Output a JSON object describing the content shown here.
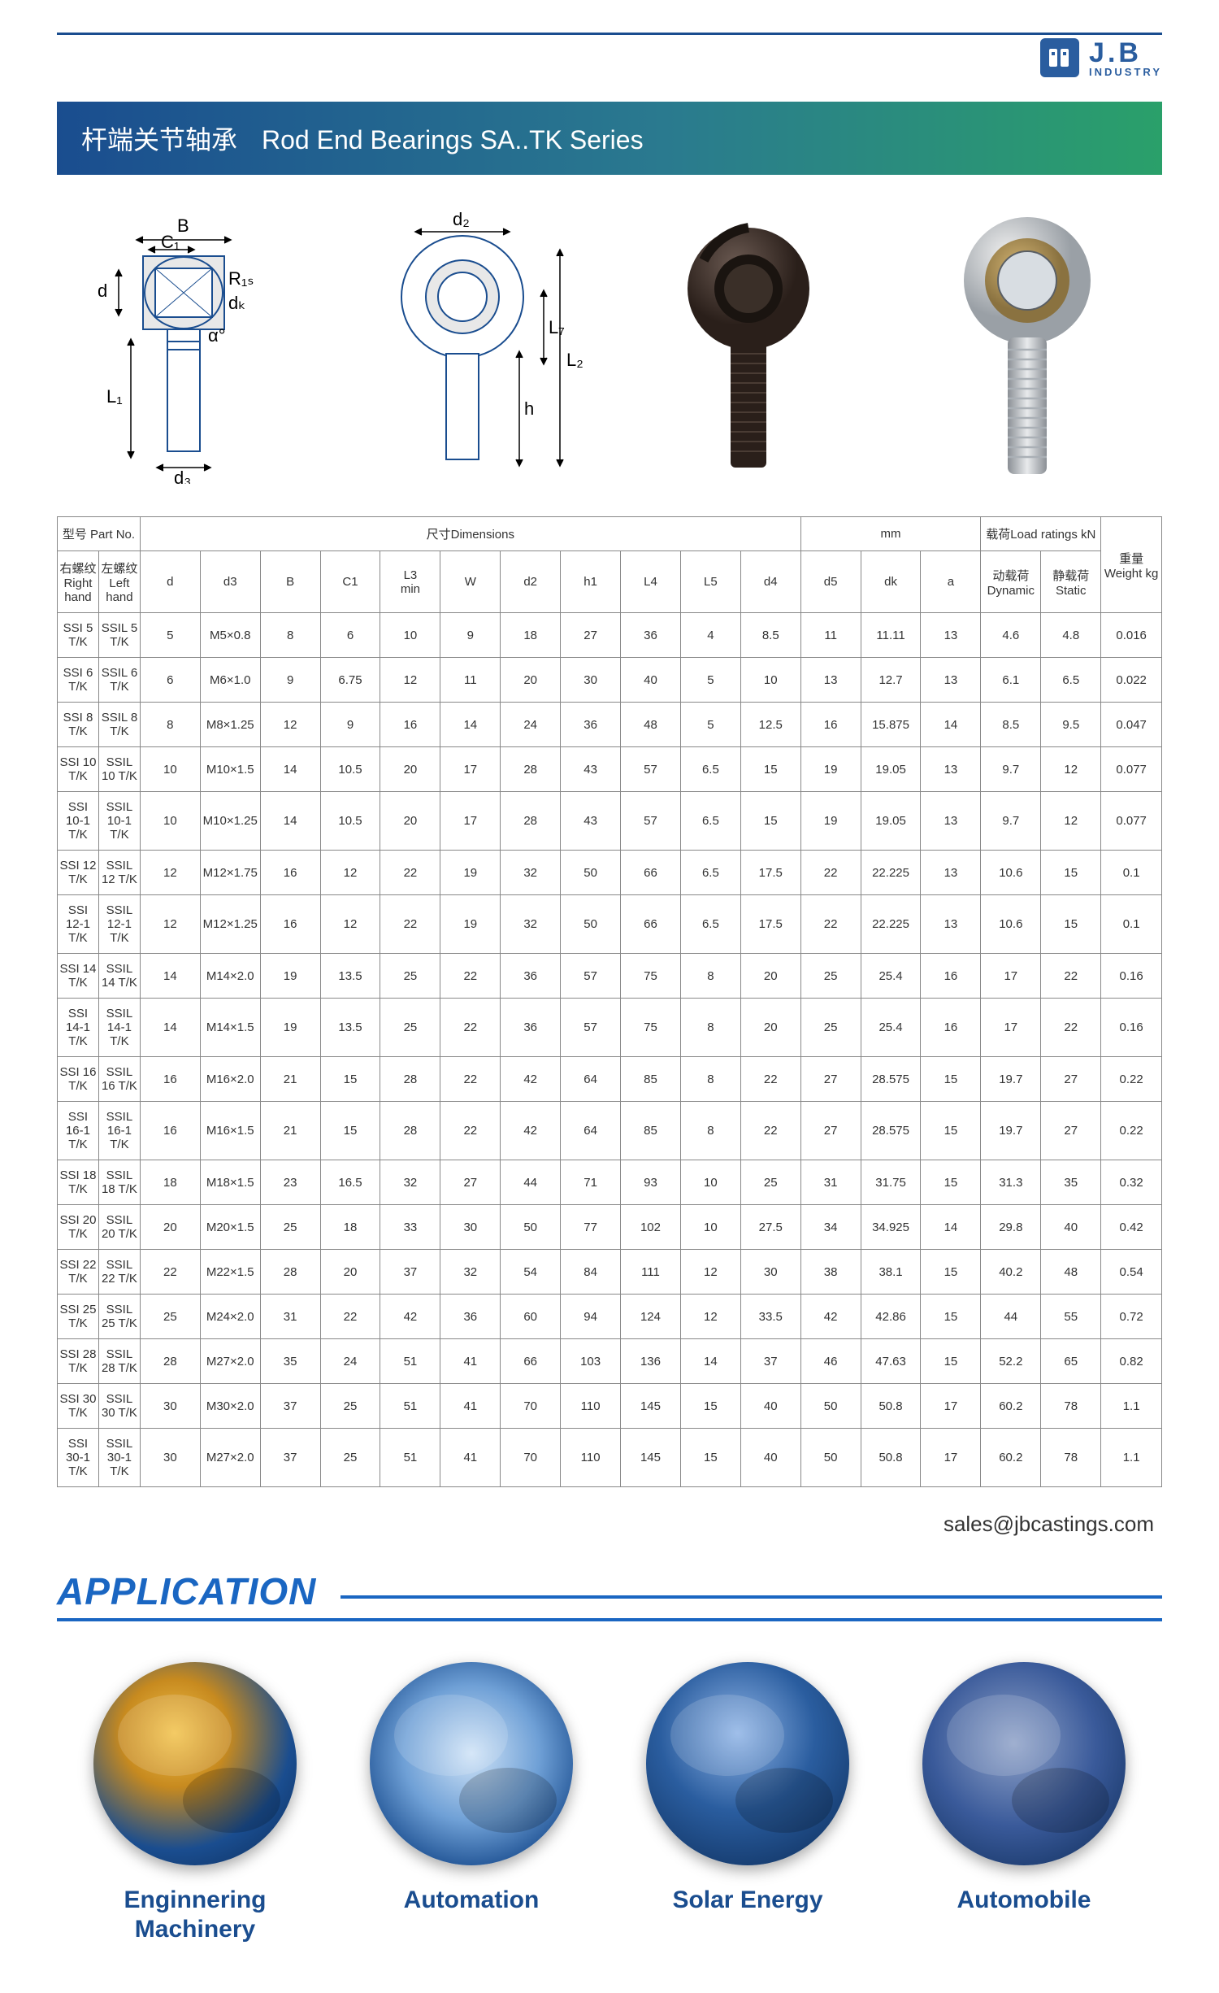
{
  "brand": {
    "name": "J.B",
    "sub": "INDUSTRY",
    "badge": "JB"
  },
  "title": {
    "cn": "杆端关节轴承",
    "en": "Rod End Bearings SA..TK Series"
  },
  "contact_email": "sales@jbcastings.com",
  "diagram_labels": {
    "B": "B",
    "C1": "C₁",
    "d": "d",
    "R1s": "R₁ₛ",
    "dk": "dₖ",
    "alpha": "α°",
    "L1": "L₁",
    "d3": "d₃",
    "d2": "d₂",
    "L7": "L₇",
    "L2": "L₂",
    "h": "h"
  },
  "table": {
    "header_groups": {
      "part_no": "型号 Part No.",
      "dimensions": "尺寸Dimensions",
      "mm": "mm",
      "load": "载荷Load ratings kN",
      "weight": "重量\nWeight kg"
    },
    "columns": [
      "右螺纹\nRight hand",
      "左螺纹\nLeft hand",
      "d",
      "d3",
      "B",
      "C1",
      "L3\nmin",
      "W",
      "d2",
      "h1",
      "L4",
      "L5",
      "d4",
      "d5",
      "dk",
      "a",
      "动载荷\nDynamic",
      "静载荷\nStatic"
    ],
    "rows": [
      [
        "SSI 5 T/K",
        "SSIL 5 T/K",
        "5",
        "M5×0.8",
        "8",
        "6",
        "10",
        "9",
        "18",
        "27",
        "36",
        "4",
        "8.5",
        "11",
        "11.11",
        "13",
        "4.6",
        "4.8",
        "0.016"
      ],
      [
        "SSI 6 T/K",
        "SSIL 6 T/K",
        "6",
        "M6×1.0",
        "9",
        "6.75",
        "12",
        "11",
        "20",
        "30",
        "40",
        "5",
        "10",
        "13",
        "12.7",
        "13",
        "6.1",
        "6.5",
        "0.022"
      ],
      [
        "SSI 8 T/K",
        "SSIL 8 T/K",
        "8",
        "M8×1.25",
        "12",
        "9",
        "16",
        "14",
        "24",
        "36",
        "48",
        "5",
        "12.5",
        "16",
        "15.875",
        "14",
        "8.5",
        "9.5",
        "0.047"
      ],
      [
        "SSI 10 T/K",
        "SSIL 10 T/K",
        "10",
        "M10×1.5",
        "14",
        "10.5",
        "20",
        "17",
        "28",
        "43",
        "57",
        "6.5",
        "15",
        "19",
        "19.05",
        "13",
        "9.7",
        "12",
        "0.077"
      ],
      [
        "SSI 10-1 T/K",
        "SSIL 10-1 T/K",
        "10",
        "M10×1.25",
        "14",
        "10.5",
        "20",
        "17",
        "28",
        "43",
        "57",
        "6.5",
        "15",
        "19",
        "19.05",
        "13",
        "9.7",
        "12",
        "0.077"
      ],
      [
        "SSI 12 T/K",
        "SSIL 12 T/K",
        "12",
        "M12×1.75",
        "16",
        "12",
        "22",
        "19",
        "32",
        "50",
        "66",
        "6.5",
        "17.5",
        "22",
        "22.225",
        "13",
        "10.6",
        "15",
        "0.1"
      ],
      [
        "SSI 12-1 T/K",
        "SSIL 12-1 T/K",
        "12",
        "M12×1.25",
        "16",
        "12",
        "22",
        "19",
        "32",
        "50",
        "66",
        "6.5",
        "17.5",
        "22",
        "22.225",
        "13",
        "10.6",
        "15",
        "0.1"
      ],
      [
        "SSI 14 T/K",
        "SSIL 14 T/K",
        "14",
        "M14×2.0",
        "19",
        "13.5",
        "25",
        "22",
        "36",
        "57",
        "75",
        "8",
        "20",
        "25",
        "25.4",
        "16",
        "17",
        "22",
        "0.16"
      ],
      [
        "SSI 14-1 T/K",
        "SSIL 14-1 T/K",
        "14",
        "M14×1.5",
        "19",
        "13.5",
        "25",
        "22",
        "36",
        "57",
        "75",
        "8",
        "20",
        "25",
        "25.4",
        "16",
        "17",
        "22",
        "0.16"
      ],
      [
        "SSI 16 T/K",
        "SSIL 16 T/K",
        "16",
        "M16×2.0",
        "21",
        "15",
        "28",
        "22",
        "42",
        "64",
        "85",
        "8",
        "22",
        "27",
        "28.575",
        "15",
        "19.7",
        "27",
        "0.22"
      ],
      [
        "SSI 16-1 T/K",
        "SSIL 16-1 T/K",
        "16",
        "M16×1.5",
        "21",
        "15",
        "28",
        "22",
        "42",
        "64",
        "85",
        "8",
        "22",
        "27",
        "28.575",
        "15",
        "19.7",
        "27",
        "0.22"
      ],
      [
        "SSI 18 T/K",
        "SSIL 18 T/K",
        "18",
        "M18×1.5",
        "23",
        "16.5",
        "32",
        "27",
        "44",
        "71",
        "93",
        "10",
        "25",
        "31",
        "31.75",
        "15",
        "31.3",
        "35",
        "0.32"
      ],
      [
        "SSI 20 T/K",
        "SSIL 20 T/K",
        "20",
        "M20×1.5",
        "25",
        "18",
        "33",
        "30",
        "50",
        "77",
        "102",
        "10",
        "27.5",
        "34",
        "34.925",
        "14",
        "29.8",
        "40",
        "0.42"
      ],
      [
        "SSI 22 T/K",
        "SSIL 22 T/K",
        "22",
        "M22×1.5",
        "28",
        "20",
        "37",
        "32",
        "54",
        "84",
        "111",
        "12",
        "30",
        "38",
        "38.1",
        "15",
        "40.2",
        "48",
        "0.54"
      ],
      [
        "SSI 25 T/K",
        "SSIL 25 T/K",
        "25",
        "M24×2.0",
        "31",
        "22",
        "42",
        "36",
        "60",
        "94",
        "124",
        "12",
        "33.5",
        "42",
        "42.86",
        "15",
        "44",
        "55",
        "0.72"
      ],
      [
        "SSI 28 T/K",
        "SSIL 28 T/K",
        "28",
        "M27×2.0",
        "35",
        "24",
        "51",
        "41",
        "66",
        "103",
        "136",
        "14",
        "37",
        "46",
        "47.63",
        "15",
        "52.2",
        "65",
        "0.82"
      ],
      [
        "SSI 30 T/K",
        "SSIL 30 T/K",
        "30",
        "M30×2.0",
        "37",
        "25",
        "51",
        "41",
        "70",
        "110",
        "145",
        "15",
        "40",
        "50",
        "50.8",
        "17",
        "60.2",
        "78",
        "1.1"
      ],
      [
        "SSI 30-1 T/K",
        "SSIL 30-1 T/K",
        "30",
        "M27×2.0",
        "37",
        "25",
        "51",
        "41",
        "70",
        "110",
        "145",
        "15",
        "40",
        "50",
        "50.8",
        "17",
        "60.2",
        "78",
        "1.1"
      ]
    ]
  },
  "applications_heading": "APPLICATION",
  "applications": [
    {
      "label": "Enginnering\nMachinery",
      "bg": "radial-gradient(circle at 40% 35%, #f2c24a 0%, #c78a1f 30%, #1a4d8f 65%, #0b2a55 100%)"
    },
    {
      "label": "Automation",
      "bg": "radial-gradient(circle at 50% 45%, #cfe3f7 0%, #6fa0d6 45%, #1a4d8f 80%, #0b2a55 100%)"
    },
    {
      "label": "Solar Energy",
      "bg": "radial-gradient(circle at 45% 35%, #8fb4e6 0%, #2a5d9f 45%, #0b2a55 100%)"
    },
    {
      "label": "Automobile",
      "bg": "radial-gradient(circle at 45% 40%, #8fa2c8 0%, #3a5a9a 50%, #0b2a55 100%)"
    }
  ],
  "colors": {
    "rule": "#1a4d8f",
    "title_grad_start": "#1a4d8f",
    "title_grad_end": "#2aa06a",
    "heading": "#1a66c2"
  }
}
